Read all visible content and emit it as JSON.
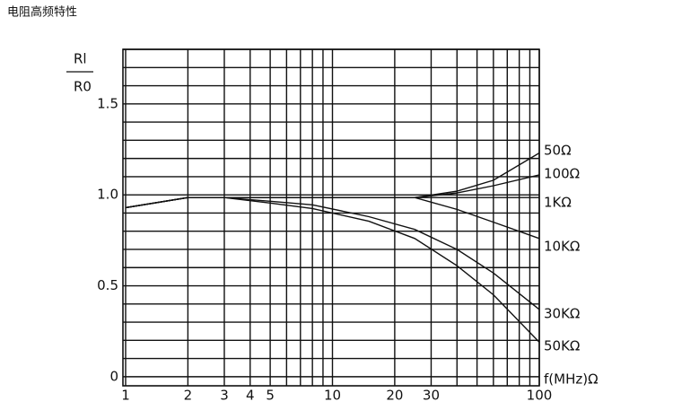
{
  "chart_data": {
    "type": "line",
    "title": "电阻高频特性",
    "y_label_top": "Rl",
    "y_label_bottom": "R0",
    "x_label": "f(MHz)Ω",
    "log_x": true,
    "xlim": [
      1,
      100
    ],
    "ylim": [
      -0.05,
      1.8
    ],
    "xticks": [
      1,
      2,
      3,
      4,
      5,
      10,
      20,
      30,
      100
    ],
    "yticks": [
      0,
      0.5,
      {
        "value": 1,
        "label": "1.0"
      },
      1.5
    ],
    "xgrid": [
      1,
      2,
      3,
      4,
      5,
      6,
      7,
      8,
      9,
      10,
      20,
      30,
      40,
      50,
      60,
      70,
      80,
      90,
      100
    ],
    "ygrid": [
      0,
      0.1,
      0.2,
      0.3,
      0.4,
      0.5,
      0.6,
      0.7,
      0.8,
      0.9,
      1,
      1.1,
      1.2,
      1.3,
      1.4,
      1.5,
      1.6,
      1.7,
      1.8
    ],
    "x": [
      1,
      2,
      3,
      5,
      8,
      15,
      25,
      40,
      60,
      100
    ],
    "series": [
      {
        "name": "50Ω",
        "color": "#111",
        "values": [
          0.93,
          0.985,
          0.985,
          0.985,
          0.985,
          0.985,
          0.985,
          1.02,
          1.08,
          1.23
        ]
      },
      {
        "name": "100Ω",
        "color": "#111",
        "values": [
          0.93,
          0.985,
          0.985,
          0.985,
          0.985,
          0.985,
          0.985,
          1.01,
          1.05,
          1.11
        ]
      },
      {
        "name": "1KΩ",
        "color": "#111",
        "values": [
          0.93,
          0.985,
          0.985,
          0.985,
          0.985,
          0.985,
          0.985,
          0.985,
          0.985,
          0.985
        ]
      },
      {
        "name": "10KΩ",
        "color": "#111",
        "values": [
          0.93,
          0.985,
          0.985,
          0.985,
          0.985,
          0.985,
          0.985,
          0.92,
          0.85,
          0.76
        ]
      },
      {
        "name": "30KΩ",
        "color": "#111",
        "values": [
          0.93,
          0.985,
          0.985,
          0.965,
          0.945,
          0.88,
          0.81,
          0.7,
          0.57,
          0.37
        ]
      },
      {
        "name": "50KΩ",
        "color": "#111",
        "values": [
          0.93,
          0.985,
          0.985,
          0.955,
          0.925,
          0.855,
          0.76,
          0.61,
          0.45,
          0.19
        ]
      }
    ]
  }
}
